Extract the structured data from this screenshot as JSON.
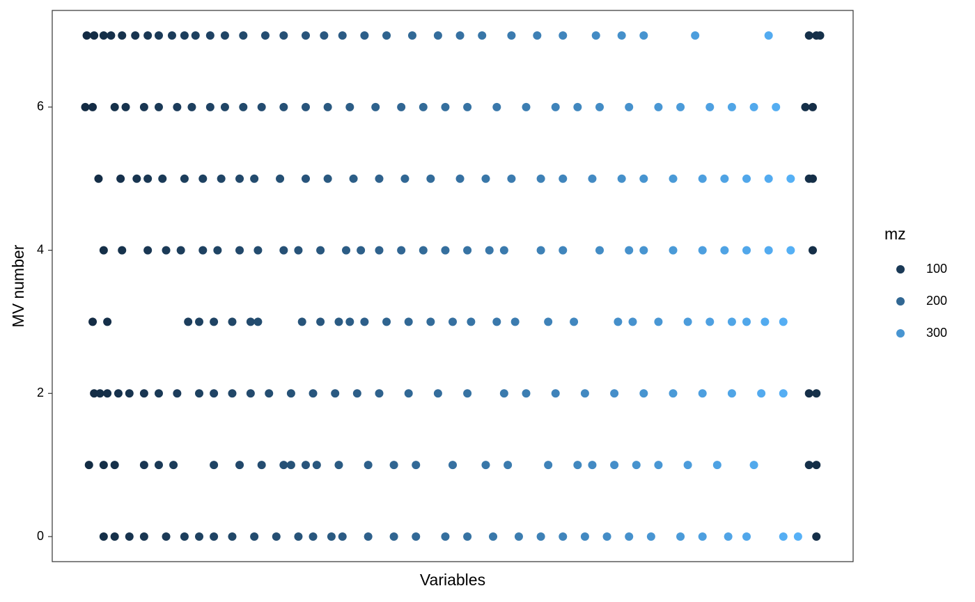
{
  "chart_data": {
    "type": "scatter",
    "x_label": "Variables",
    "y_label": "MV number",
    "xlim": [
      -45,
      1045
    ],
    "ylim": [
      -0.35,
      7.35
    ],
    "yticks": [
      0,
      2,
      4,
      6
    ],
    "grid": false,
    "color_low": "#132B43",
    "color_high": "#56B1F7",
    "legend": {
      "title": "mz",
      "breaks": [
        100,
        200,
        300
      ],
      "position": "right"
    },
    "rows": [
      {
        "y": 7,
        "x": [
          2,
          12,
          25,
          35,
          50,
          68,
          85,
          100,
          118,
          135,
          150,
          170,
          190,
          215,
          245,
          270,
          300,
          325,
          350,
          380,
          410,
          445,
          480,
          510,
          540,
          580,
          615,
          650,
          695,
          730,
          760,
          830,
          930,
          985,
          995,
          1000
        ],
        "mz": [
          71,
          74,
          78,
          81,
          85,
          90,
          96,
          100,
          105,
          111,
          115,
          121,
          127,
          135,
          144,
          151,
          160,
          168,
          175,
          184,
          193,
          204,
          214,
          223,
          232,
          244,
          255,
          265,
          279,
          289,
          298,
          319,
          349,
          80,
          78,
          82
        ]
      },
      {
        "y": 6,
        "x": [
          0,
          10,
          40,
          55,
          80,
          100,
          125,
          145,
          170,
          190,
          215,
          240,
          270,
          300,
          330,
          360,
          395,
          430,
          460,
          490,
          520,
          560,
          600,
          640,
          670,
          700,
          740,
          780,
          810,
          850,
          880,
          910,
          940,
          980,
          990
        ],
        "mz": [
          70,
          73,
          82,
          87,
          94,
          100,
          108,
          114,
          121,
          127,
          135,
          142,
          151,
          160,
          169,
          178,
          189,
          199,
          208,
          217,
          226,
          238,
          250,
          262,
          271,
          280,
          292,
          304,
          313,
          325,
          334,
          343,
          352,
          80,
          77
        ]
      },
      {
        "y": 5,
        "x": [
          18,
          48,
          70,
          85,
          105,
          135,
          160,
          185,
          210,
          230,
          265,
          300,
          330,
          365,
          400,
          435,
          470,
          510,
          545,
          580,
          620,
          650,
          690,
          730,
          760,
          800,
          840,
          870,
          900,
          930,
          960,
          985,
          990
        ],
        "mz": [
          75,
          84,
          91,
          96,
          102,
          111,
          118,
          126,
          133,
          139,
          150,
          160,
          169,
          180,
          190,
          201,
          211,
          223,
          234,
          244,
          256,
          265,
          277,
          289,
          298,
          310,
          322,
          331,
          340,
          349,
          358,
          79,
          76
        ]
      },
      {
        "y": 4,
        "x": [
          25,
          50,
          85,
          110,
          130,
          160,
          180,
          210,
          235,
          270,
          290,
          320,
          355,
          375,
          400,
          430,
          460,
          490,
          520,
          550,
          570,
          620,
          650,
          700,
          740,
          760,
          800,
          840,
          870,
          900,
          930,
          960,
          990
        ],
        "mz": [
          78,
          85,
          96,
          103,
          109,
          118,
          124,
          133,
          141,
          151,
          157,
          166,
          177,
          183,
          190,
          199,
          208,
          217,
          226,
          235,
          241,
          256,
          265,
          280,
          292,
          298,
          310,
          322,
          331,
          340,
          349,
          358,
          78
        ]
      },
      {
        "y": 3,
        "x": [
          10,
          30,
          140,
          155,
          175,
          200,
          225,
          235,
          295,
          320,
          345,
          360,
          380,
          410,
          440,
          470,
          500,
          525,
          560,
          585,
          630,
          665,
          725,
          745,
          780,
          820,
          850,
          880,
          900,
          925,
          950
        ],
        "mz": [
          73,
          79,
          112,
          117,
          123,
          130,
          138,
          141,
          159,
          166,
          174,
          178,
          184,
          193,
          202,
          211,
          220,
          228,
          238,
          246,
          259,
          270,
          288,
          294,
          304,
          316,
          325,
          334,
          340,
          348,
          355
        ]
      },
      {
        "y": 2,
        "x": [
          12,
          20,
          30,
          45,
          60,
          80,
          100,
          125,
          155,
          175,
          200,
          225,
          250,
          280,
          310,
          340,
          370,
          400,
          440,
          480,
          520,
          570,
          600,
          640,
          680,
          720,
          760,
          800,
          840,
          880,
          920,
          950,
          985,
          995
        ],
        "mz": [
          74,
          76,
          79,
          84,
          88,
          94,
          100,
          108,
          117,
          123,
          130,
          138,
          145,
          154,
          163,
          172,
          181,
          190,
          202,
          214,
          226,
          241,
          250,
          262,
          274,
          286,
          298,
          310,
          322,
          334,
          346,
          355,
          78,
          82
        ]
      },
      {
        "y": 1,
        "x": [
          5,
          25,
          40,
          80,
          100,
          120,
          175,
          210,
          240,
          270,
          280,
          300,
          315,
          345,
          385,
          420,
          450,
          500,
          545,
          575,
          630,
          670,
          690,
          720,
          750,
          780,
          820,
          860,
          910,
          985,
          995
        ],
        "mz": [
          72,
          78,
          82,
          94,
          100,
          106,
          123,
          133,
          142,
          151,
          154,
          160,
          165,
          174,
          186,
          196,
          205,
          220,
          234,
          243,
          259,
          271,
          277,
          286,
          295,
          304,
          316,
          328,
          343,
          80,
          76
        ]
      },
      {
        "y": 0,
        "x": [
          25,
          40,
          60,
          80,
          110,
          135,
          155,
          175,
          200,
          230,
          260,
          290,
          310,
          335,
          350,
          385,
          420,
          450,
          490,
          520,
          555,
          590,
          620,
          650,
          680,
          710,
          740,
          770,
          810,
          840,
          875,
          900,
          950,
          970,
          995
        ],
        "mz": [
          78,
          82,
          88,
          94,
          103,
          111,
          117,
          123,
          130,
          139,
          148,
          157,
          163,
          171,
          175,
          186,
          196,
          205,
          217,
          226,
          237,
          247,
          256,
          265,
          274,
          283,
          292,
          301,
          313,
          322,
          333,
          340,
          355,
          361,
          79
        ]
      }
    ]
  }
}
